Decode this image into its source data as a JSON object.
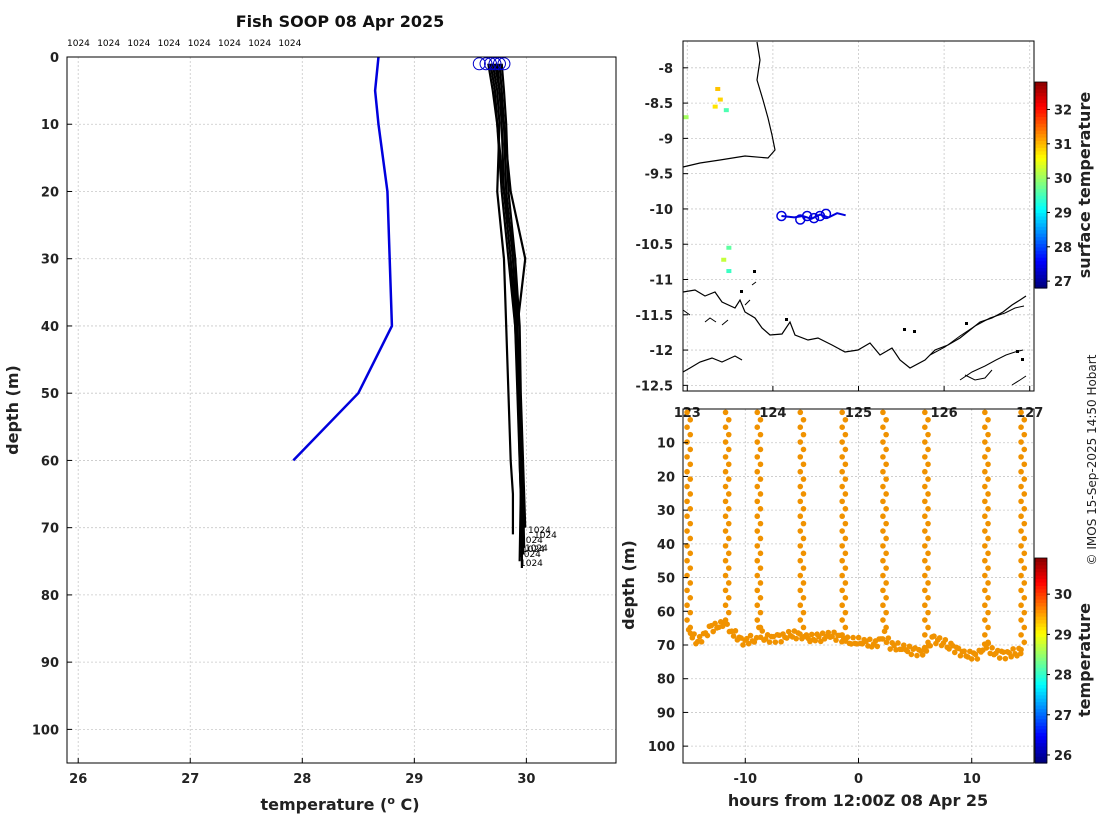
{
  "colors": {
    "blue_profile": "#0000dd",
    "black_profiles": "#000000",
    "orange_points": "#f09200",
    "yellow_points": "#f0e000",
    "green_points": "#22bb22"
  },
  "labels": {
    "credit": "© IMOS 15-Sep-2025 14:50 Hobart"
  },
  "icons": {
    "start_marker": "circle-marker-icon",
    "colorbar": "colorbar-icon"
  },
  "chart_data": [
    {
      "type": "line",
      "title": "Fish SOOP 08 Apr 2025",
      "xlabel": "temperature (o C)",
      "ylabel": "depth (m)",
      "xlim": [
        25.9,
        30.8
      ],
      "ylim": [
        105,
        0
      ],
      "xticks": [
        26,
        27,
        28,
        29,
        30
      ],
      "yticks": [
        0,
        10,
        20,
        30,
        40,
        50,
        60,
        70,
        80,
        90,
        100
      ],
      "grid": true,
      "top_labels": [
        "1024",
        "1024",
        "1024",
        "1024",
        "1024",
        "1024",
        "1024",
        "1024"
      ],
      "end_labels": [
        "1024",
        "1024",
        "1024",
        "1024",
        "1024",
        "1024",
        "1024"
      ],
      "series": [
        {
          "name": "blue profile",
          "x": [
            28.68,
            28.65,
            28.68,
            28.76,
            28.78,
            28.8,
            28.5,
            27.92
          ],
          "y": [
            0,
            5,
            10,
            20,
            30,
            40,
            50,
            60
          ]
        },
        {
          "name": "black profile 1",
          "x": [
            29.7,
            29.74,
            29.76,
            29.74,
            29.8,
            29.82,
            29.84,
            29.86,
            29.88,
            29.88
          ],
          "y": [
            1,
            5,
            10,
            20,
            30,
            40,
            50,
            60,
            65,
            71
          ]
        },
        {
          "name": "black profile 2",
          "x": [
            29.78,
            29.8,
            29.82,
            29.84,
            29.9,
            29.92,
            29.93,
            29.94,
            29.95,
            29.95
          ],
          "y": [
            1,
            5,
            10,
            20,
            30,
            40,
            50,
            60,
            65,
            72
          ]
        },
        {
          "name": "black profile 3",
          "x": [
            29.68,
            29.72,
            29.74,
            29.78,
            29.84,
            29.9,
            29.93,
            29.95,
            29.96,
            29.97
          ],
          "y": [
            1,
            5,
            10,
            20,
            30,
            40,
            50,
            60,
            65,
            74
          ]
        },
        {
          "name": "black profile 4",
          "x": [
            29.72,
            29.76,
            29.8,
            29.86,
            29.99,
            29.92,
            29.94,
            29.96,
            29.97,
            29.98
          ],
          "y": [
            1,
            5,
            10,
            20,
            30,
            40,
            50,
            60,
            65,
            73
          ]
        },
        {
          "name": "black profile 5",
          "x": [
            29.66,
            29.7,
            29.74,
            29.8,
            29.86,
            29.9,
            29.92,
            29.94,
            29.95,
            29.94
          ],
          "y": [
            1,
            5,
            10,
            20,
            30,
            40,
            50,
            60,
            65,
            75
          ]
        },
        {
          "name": "black profile 6",
          "x": [
            29.76,
            29.78,
            29.8,
            29.82,
            29.88,
            29.91,
            29.93,
            29.95,
            29.96,
            29.96
          ],
          "y": [
            1,
            5,
            10,
            20,
            30,
            40,
            50,
            60,
            65,
            76
          ]
        },
        {
          "name": "black profile 7",
          "x": [
            29.74,
            29.76,
            29.78,
            29.8,
            29.9,
            29.94,
            29.95,
            29.97,
            29.98,
            29.99
          ],
          "y": [
            1,
            5,
            10,
            20,
            30,
            40,
            50,
            60,
            65,
            70
          ]
        }
      ],
      "start_markers_x": [
        29.58,
        29.64,
        29.68,
        29.72,
        29.76,
        29.8
      ]
    },
    {
      "type": "scatter",
      "title": "",
      "xlabel": "",
      "ylabel": "",
      "xlim": [
        122.95,
        127.05
      ],
      "ylim": [
        -12.58,
        -7.62
      ],
      "xticks": [
        123,
        124,
        125,
        126,
        127
      ],
      "xtick_labels": [
        "123",
        "124",
        "125",
        "126",
        "127"
      ],
      "yticks": [
        -8,
        -8.5,
        -9,
        -9.5,
        -10,
        -10.5,
        -11,
        -11.5,
        -12,
        -12.5
      ],
      "ytick_labels": [
        "-8",
        "-8.5",
        "-9",
        "-9.5",
        "-10",
        "-10.5",
        "-11",
        "-11.5",
        "-12",
        "-12.5"
      ],
      "colorbar": {
        "label": "surface temperature",
        "ticks": [
          27,
          28,
          29,
          30,
          31,
          32
        ],
        "range": [
          26.8,
          32.8
        ]
      },
      "ship_track": {
        "lon": [
          124.1,
          124.25,
          124.35,
          124.45,
          124.55,
          124.65,
          124.75,
          124.85
        ],
        "lat": [
          -10.1,
          -10.12,
          -10.1,
          -10.14,
          -10.08,
          -10.12,
          -10.06,
          -10.09
        ]
      },
      "track_circles": {
        "lon": [
          124.1,
          124.32,
          124.4,
          124.48,
          124.55,
          124.62
        ],
        "lat": [
          -10.1,
          -10.15,
          -10.1,
          -10.13,
          -10.1,
          -10.07
        ]
      },
      "sst_points": [
        {
          "lon": 123.35,
          "lat": -8.3,
          "value": 30.9
        },
        {
          "lon": 123.38,
          "lat": -8.45,
          "value": 30.8
        },
        {
          "lon": 123.32,
          "lat": -8.55,
          "value": 30.7
        },
        {
          "lon": 123.45,
          "lat": -8.6,
          "value": 29.5
        },
        {
          "lon": 122.98,
          "lat": -8.7,
          "value": 30.0
        },
        {
          "lon": 123.48,
          "lat": -10.55,
          "value": 29.6
        },
        {
          "lon": 123.42,
          "lat": -10.72,
          "value": 30.2
        },
        {
          "lon": 123.48,
          "lat": -10.88,
          "value": 29.4
        }
      ]
    },
    {
      "type": "scatter",
      "title": "",
      "xlabel": "hours from 12:00Z 08 Apr 25",
      "ylabel": "depth (m)",
      "xlim": [
        -15.5,
        15.5
      ],
      "ylim": [
        105,
        0
      ],
      "xticks": [
        -10,
        0,
        10
      ],
      "xtick_labels": [
        "-10",
        "0",
        "10"
      ],
      "yticks": [
        10,
        20,
        30,
        40,
        50,
        60,
        70,
        80,
        90,
        100
      ],
      "colorbar": {
        "label": "temperature",
        "ticks": [
          26,
          27,
          28,
          29,
          30
        ],
        "range": [
          25.8,
          30.9
        ]
      },
      "casts": [
        {
          "time": -15.0,
          "bottom": 66
        },
        {
          "time": -11.6,
          "bottom": 64
        },
        {
          "time": -8.8,
          "bottom": 66
        },
        {
          "time": -5.0,
          "bottom": 67
        },
        {
          "time": -1.3,
          "bottom": 68
        },
        {
          "time": 2.3,
          "bottom": 67
        },
        {
          "time": 6.0,
          "bottom": 72
        },
        {
          "time": 11.3,
          "bottom": 70
        },
        {
          "time": 14.5,
          "bottom": 72
        }
      ],
      "bottom_trace": {
        "hours": [
          -15.0,
          -14.2,
          -13.0,
          -12.0,
          -11.6,
          -11.2,
          -10.2,
          -9.2,
          -8.8,
          -8.2,
          -7.0,
          -6.0,
          -5.0,
          -4.6,
          -3.5,
          -2.5,
          -1.3,
          -0.8,
          0.5,
          1.5,
          2.3,
          2.8,
          4.0,
          5.0,
          6.0,
          6.5,
          8.0,
          9.5,
          10.5,
          11.3,
          11.8,
          12.8,
          14.0,
          14.5
        ],
        "depth": [
          66,
          69,
          65,
          64,
          64,
          66,
          69,
          68,
          66,
          68,
          68,
          67,
          67,
          68,
          68,
          67,
          68,
          69,
          69,
          70,
          67,
          70,
          71,
          72,
          72,
          68,
          70,
          73,
          73,
          70,
          72,
          73,
          72,
          72
        ]
      }
    }
  ]
}
